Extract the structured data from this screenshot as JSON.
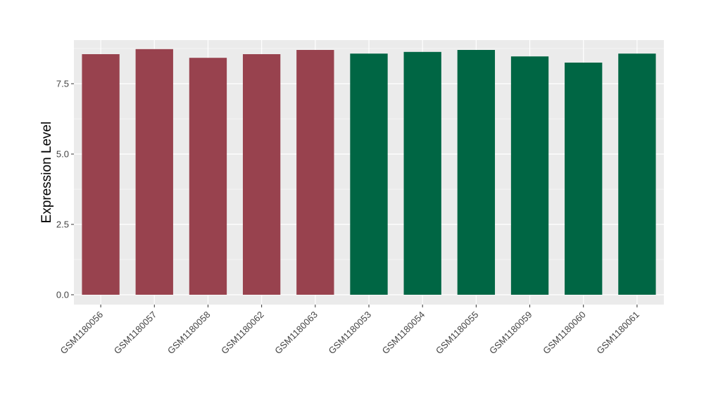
{
  "chart_data": {
    "type": "bar",
    "title": "",
    "xlabel": "",
    "ylabel": "Expression Level",
    "ylim": [
      -0.35,
      9.05
    ],
    "yticks": [
      0.0,
      2.5,
      5.0,
      7.5
    ],
    "ytick_labels": [
      "0.0",
      "2.5",
      "5.0",
      "7.5"
    ],
    "grid": true,
    "legend": "none",
    "categories": [
      "GSM1180056",
      "GSM1180057",
      "GSM1180058",
      "GSM1180062",
      "GSM1180063",
      "GSM1180053",
      "GSM1180054",
      "GSM1180055",
      "GSM1180059",
      "GSM1180060",
      "GSM1180061"
    ],
    "values": [
      8.55,
      8.73,
      8.42,
      8.55,
      8.7,
      8.57,
      8.63,
      8.7,
      8.47,
      8.25,
      8.57
    ],
    "bar_colors": [
      "#98424e",
      "#98424e",
      "#98424e",
      "#98424e",
      "#98424e",
      "#006644",
      "#006644",
      "#006644",
      "#006644",
      "#006644",
      "#006644"
    ],
    "panel_background": "#ebebeb",
    "grid_color": "#ffffff"
  }
}
